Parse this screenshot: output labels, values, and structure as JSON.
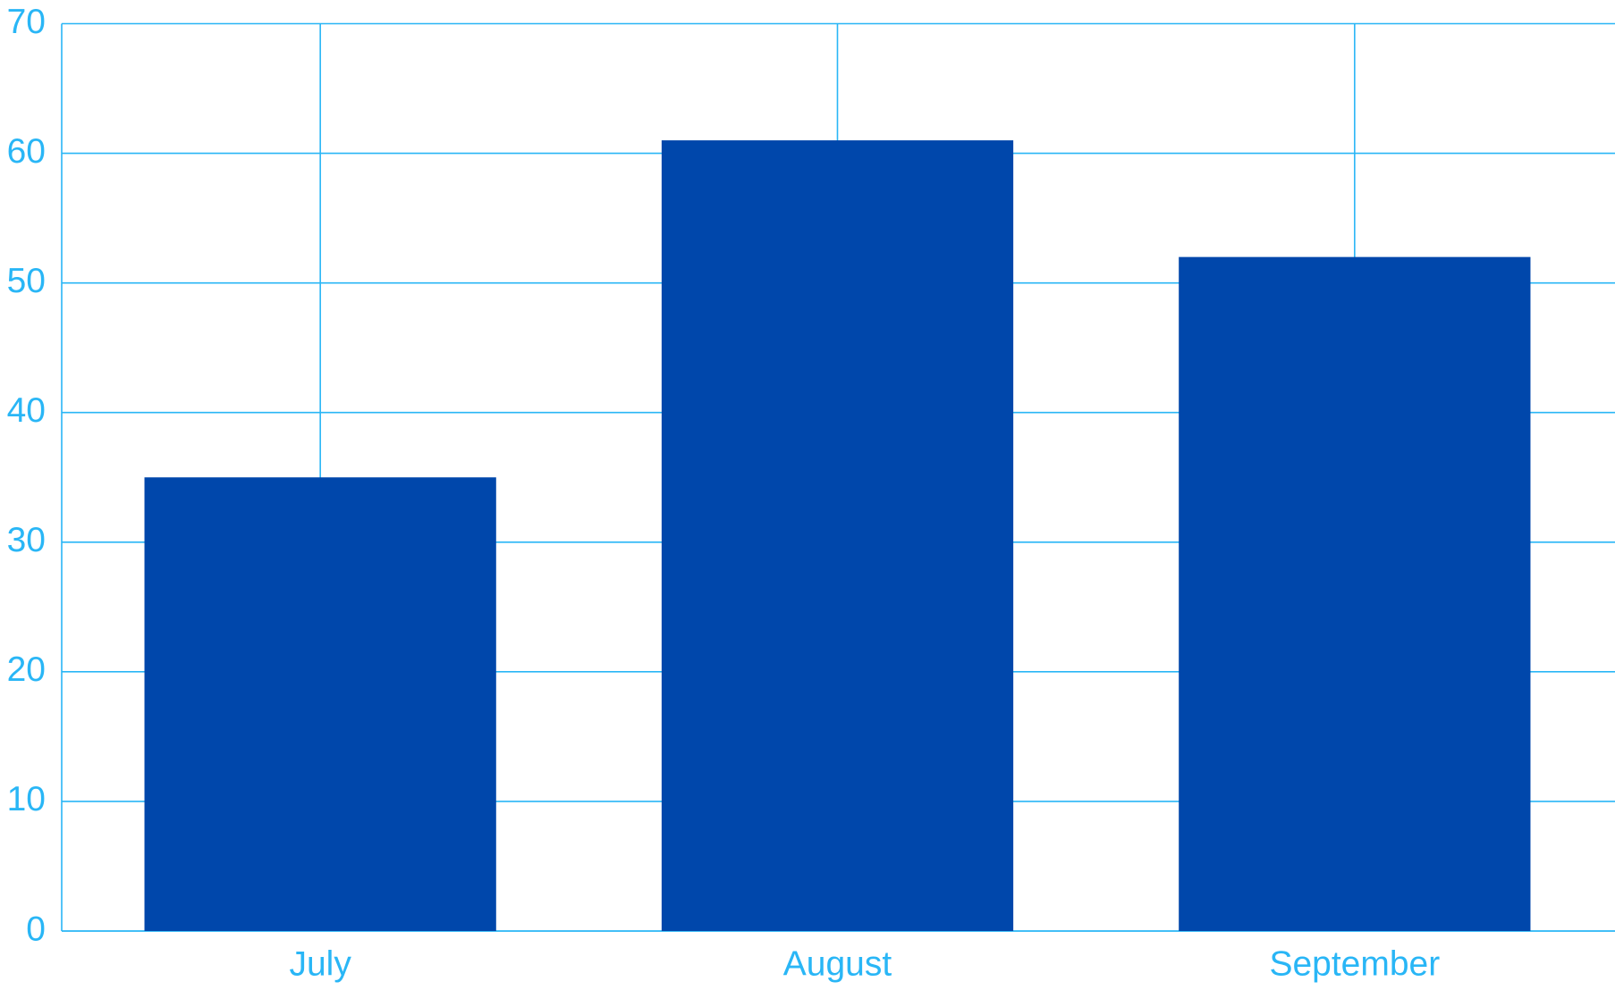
{
  "chart_data": {
    "type": "bar",
    "categories": [
      "July",
      "August",
      "September"
    ],
    "values": [
      35,
      61,
      52
    ],
    "color": "#0047ab",
    "axis_color": "#29b6f6",
    "ylim": [
      0,
      70
    ],
    "yticks": [
      0,
      10,
      20,
      30,
      40,
      50,
      60,
      70
    ],
    "grid": true
  }
}
